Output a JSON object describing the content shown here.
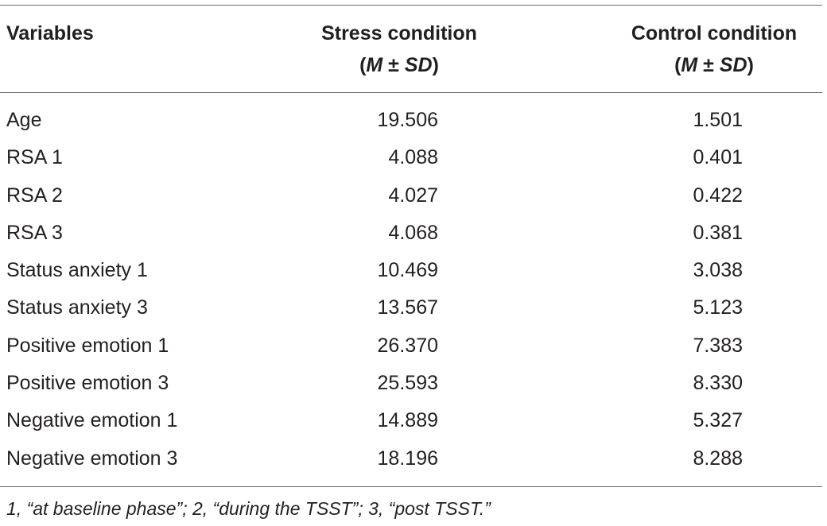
{
  "table": {
    "headers": {
      "variables": "Variables",
      "stress": "Stress condition",
      "stress_stat_m": "M",
      "stress_stat_pm": "±",
      "stress_stat_sd": "SD",
      "control": "Control condition",
      "control_stat_m": "M",
      "control_stat_pm": "±",
      "control_stat_sd": "SD"
    },
    "rows": [
      {
        "variable": "Age",
        "stress": "19.506",
        "control": "1.501"
      },
      {
        "variable": "RSA 1",
        "stress": "4.088",
        "control": "0.401"
      },
      {
        "variable": "RSA 2",
        "stress": "4.027",
        "control": "0.422"
      },
      {
        "variable": "RSA 3",
        "stress": "4.068",
        "control": "0.381"
      },
      {
        "variable": "Status anxiety 1",
        "stress": "10.469",
        "control": "3.038"
      },
      {
        "variable": "Status anxiety 3",
        "stress": "13.567",
        "control": "5.123"
      },
      {
        "variable": "Positive emotion 1",
        "stress": "26.370",
        "control": "7.383"
      },
      {
        "variable": "Positive emotion 3",
        "stress": "25.593",
        "control": "8.330"
      },
      {
        "variable": "Negative emotion 1",
        "stress": "14.889",
        "control": "5.327"
      },
      {
        "variable": "Negative emotion 3",
        "stress": "18.196",
        "control": "8.288"
      }
    ],
    "footnote": "1, “at baseline phase”; 2, “during the TSST”; 3, “post TSST.”"
  }
}
